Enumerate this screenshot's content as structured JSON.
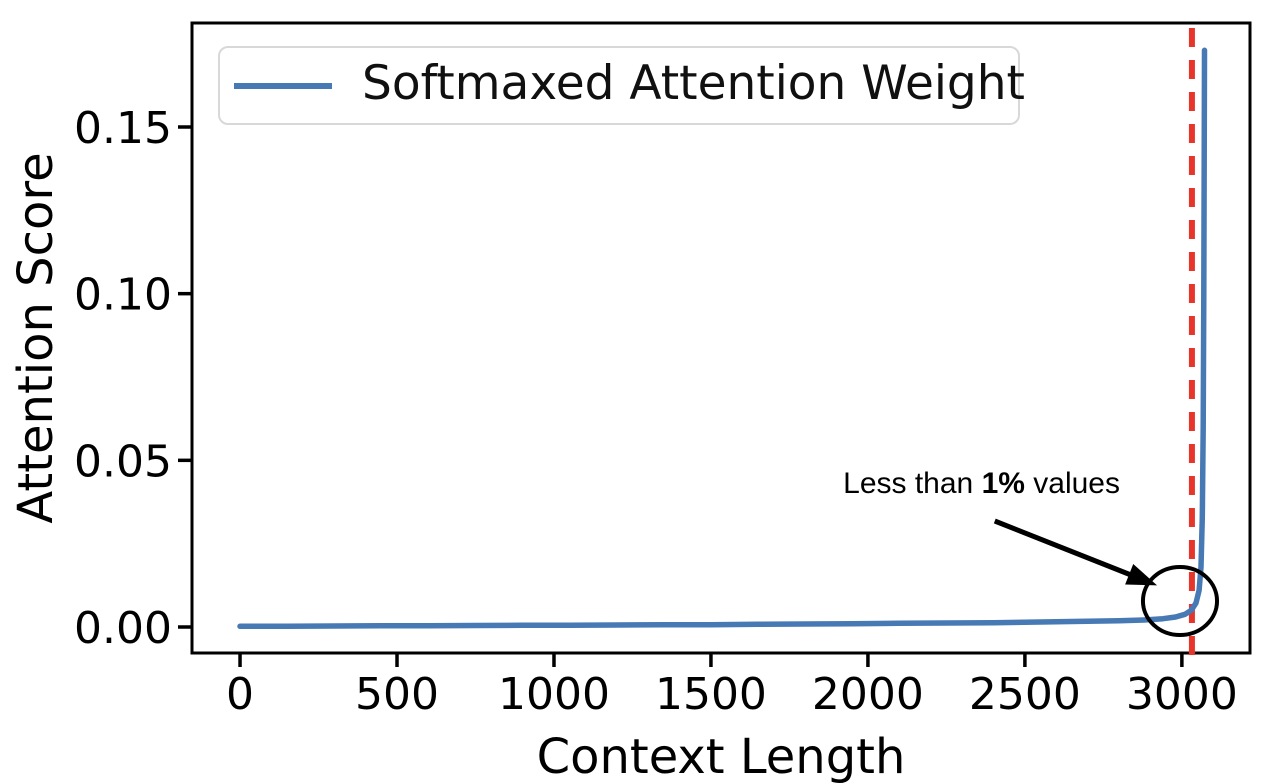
{
  "figure": {
    "background": "#ffffff"
  },
  "chart_data": {
    "type": "line",
    "title": "",
    "xlabel": "Context Length",
    "ylabel": "Attention Score",
    "xlim": [
      -153,
      3217
    ],
    "ylim": [
      -0.0078,
      0.1812
    ],
    "xticks": [
      0,
      500,
      1000,
      1500,
      2000,
      2500,
      3000
    ],
    "xtick_labels": [
      "0",
      "500",
      "1000",
      "1500",
      "2000",
      "2500",
      "3000"
    ],
    "yticks": [
      0,
      0.05,
      0.1,
      0.15
    ],
    "ytick_labels": [
      "0.00",
      "0.05",
      "0.10",
      "0.15"
    ],
    "grid": false,
    "legend": {
      "position": "upper-left",
      "entries": [
        {
          "label": "Softmaxed Attention Weight",
          "color": "#4779b4"
        }
      ]
    },
    "series": [
      {
        "name": "Softmaxed Attention Weight",
        "color": "#4779b4",
        "x": [
          0,
          150,
          300,
          450,
          600,
          750,
          900,
          1050,
          1200,
          1350,
          1500,
          1650,
          1800,
          1950,
          2100,
          2250,
          2400,
          2550,
          2700,
          2800,
          2880,
          2940,
          2980,
          3010,
          3030,
          3045,
          3055,
          3061,
          3065,
          3068,
          3070,
          3071,
          3072
        ],
        "y": [
          0.0002,
          0.00025,
          0.0003,
          0.00035,
          0.0004,
          0.00045,
          0.0005,
          0.00055,
          0.0006,
          0.00065,
          0.0007,
          0.0008,
          0.0009,
          0.001,
          0.0011,
          0.0012,
          0.0013,
          0.0015,
          0.0017,
          0.0019,
          0.0021,
          0.0025,
          0.003,
          0.0038,
          0.005,
          0.0072,
          0.011,
          0.018,
          0.033,
          0.06,
          0.1,
          0.14,
          0.173
        ]
      }
    ],
    "vline": {
      "x": 3032,
      "color": "#e6352b",
      "dash": true
    },
    "annotation": {
      "text_prefix": "Less than ",
      "text_bold": "1%",
      "text_suffix": " values",
      "text_center": [
        2362,
        0.0429
      ],
      "arrow_from": [
        2404,
        0.0318
      ],
      "arrow_to": [
        2921,
        0.0125
      ],
      "circle_center": [
        2994,
        0.0078
      ],
      "circle_radius_x": 118,
      "circle_radius_y": 0.0102,
      "color": "#000000"
    }
  }
}
